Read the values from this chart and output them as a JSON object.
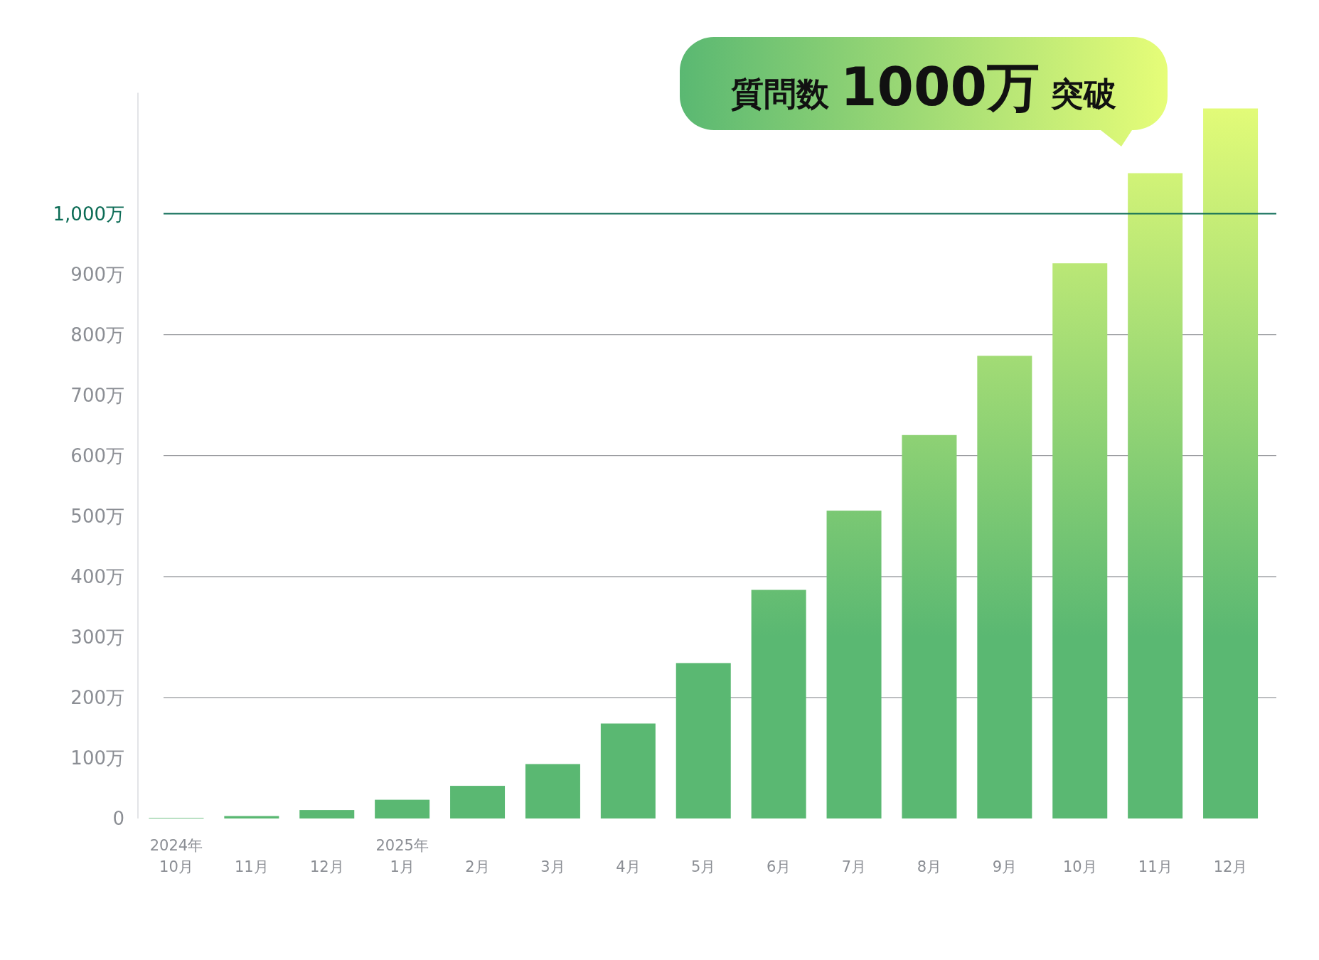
{
  "chart_data": {
    "type": "bar",
    "title": "質問数 **1000万** 突破",
    "categories": [
      "2024年\n10月",
      "11月",
      "12月",
      "2025年\n1月",
      "2月",
      "3月",
      "4月",
      "5月",
      "6月",
      "7月",
      "8月",
      "9月",
      "10月",
      "11月",
      "12月"
    ],
    "values": [
      1,
      4,
      14,
      31,
      54,
      90,
      157,
      257,
      378,
      509,
      634,
      765,
      918,
      1067,
      1174
    ],
    "color": "#5ab872",
    "ylim": [
      0,
      1200
    ],
    "yticks": [
      {
        "value": 0,
        "label": "0"
      },
      {
        "value": 100,
        "label": "100万"
      },
      {
        "value": 200,
        "label": "200万"
      },
      {
        "value": 300,
        "label": "300万"
      },
      {
        "value": 400,
        "label": "400万"
      },
      {
        "value": 500,
        "label": "500万"
      },
      {
        "value": 600,
        "label": "600万"
      },
      {
        "value": 700,
        "label": "700万"
      },
      {
        "value": 800,
        "label": "800万"
      },
      {
        "value": 900,
        "label": "900万"
      },
      {
        "value": 1000,
        "label": "1,000万"
      }
    ],
    "grid": "y",
    "ref_lines": [
      {
        "axis": "y",
        "value": 1000,
        "color": "#0b6b55"
      }
    ]
  }
}
